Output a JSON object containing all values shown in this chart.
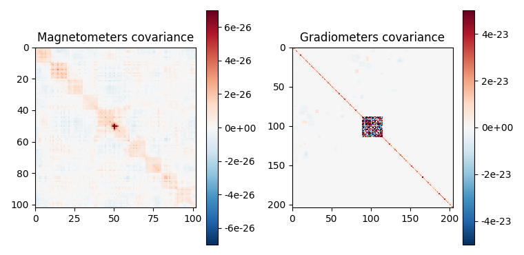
{
  "title1": "Magnetometers covariance",
  "title2": "Gradiometers covariance",
  "mag_size": 102,
  "grad_size": 204,
  "mag_vmax": 7e-26,
  "grad_vmax": 5e-23,
  "cmap": "RdBu_r",
  "figsize": [
    7.6,
    3.7
  ],
  "dpi": 100,
  "mag_xticks": [
    0,
    25,
    50,
    75,
    100
  ],
  "mag_yticks": [
    0,
    20,
    40,
    60,
    80,
    100
  ],
  "grad_xticks": [
    0,
    50,
    100,
    150,
    200
  ],
  "grad_yticks": [
    0,
    50,
    100,
    150,
    200
  ],
  "cb1_ticks": [
    -6e-26,
    -4e-26,
    -2e-26,
    0,
    2e-26,
    4e-26,
    6e-26
  ],
  "cb2_ticks": [
    -4e-23,
    -2e-23,
    0,
    2e-23,
    4e-23
  ]
}
